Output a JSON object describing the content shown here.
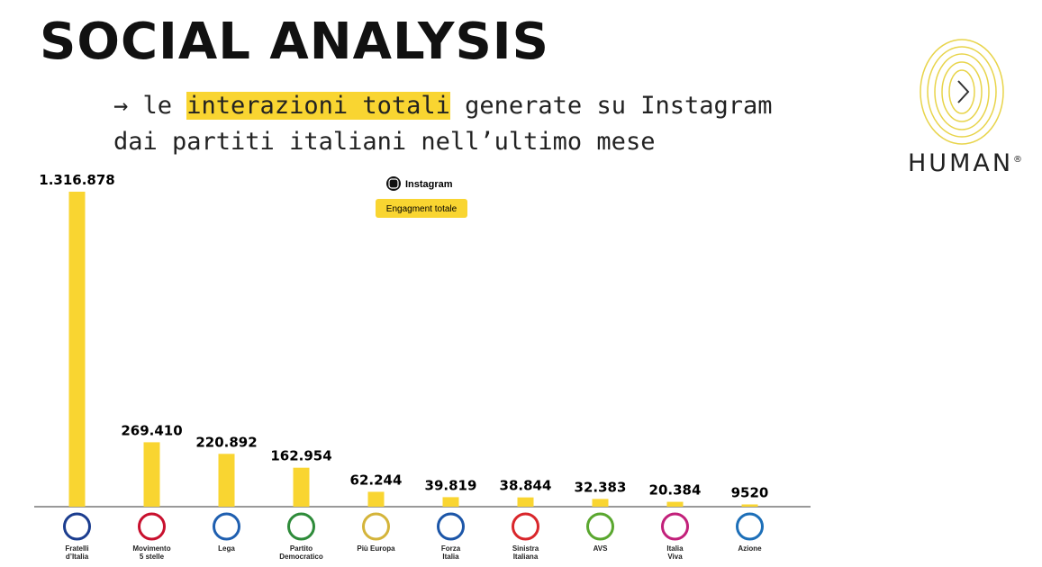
{
  "chart_data": {
    "type": "bar",
    "title": "SOCIAL ANALYSIS",
    "subtitle": {
      "before": "→ le ",
      "highlight": "interazioni totali",
      "after": " generate su Instagram\ndai partiti italiani nell’ultimo mese"
    },
    "legend": {
      "platform": "Instagram",
      "metric": "Engagment totale"
    },
    "logo": {
      "name": "HUMAN",
      "mark": "®"
    },
    "color": "#f9d531",
    "categories": [
      "Fratelli\nd’Italia",
      "Movimento\n5 stelle",
      "Lega",
      "Partito\nDemocratico",
      "Più Europa",
      "Forza\nItalia",
      "Sinistra\nItaliana",
      "AVS",
      "Italia\nViva",
      "Azione"
    ],
    "values": [
      1316878,
      269410,
      220892,
      162954,
      62244,
      39819,
      38844,
      32383,
      20384,
      9520
    ],
    "value_labels": [
      "1.316.878",
      "269.410",
      "220.892",
      "162.954",
      "62.244",
      "39.819",
      "38.844",
      "32.383",
      "20.384",
      "9520"
    ]
  }
}
